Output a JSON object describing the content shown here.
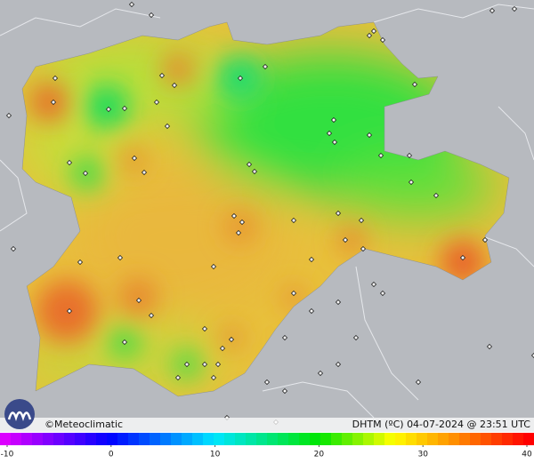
{
  "map": {
    "credit": "©Meteoclimatic",
    "caption": "DHTM (ºC) 04-07-2024 @ 23:51 UTC",
    "scale": {
      "ticks": [
        -10,
        0,
        10,
        20,
        30,
        40
      ]
    }
  }
}
